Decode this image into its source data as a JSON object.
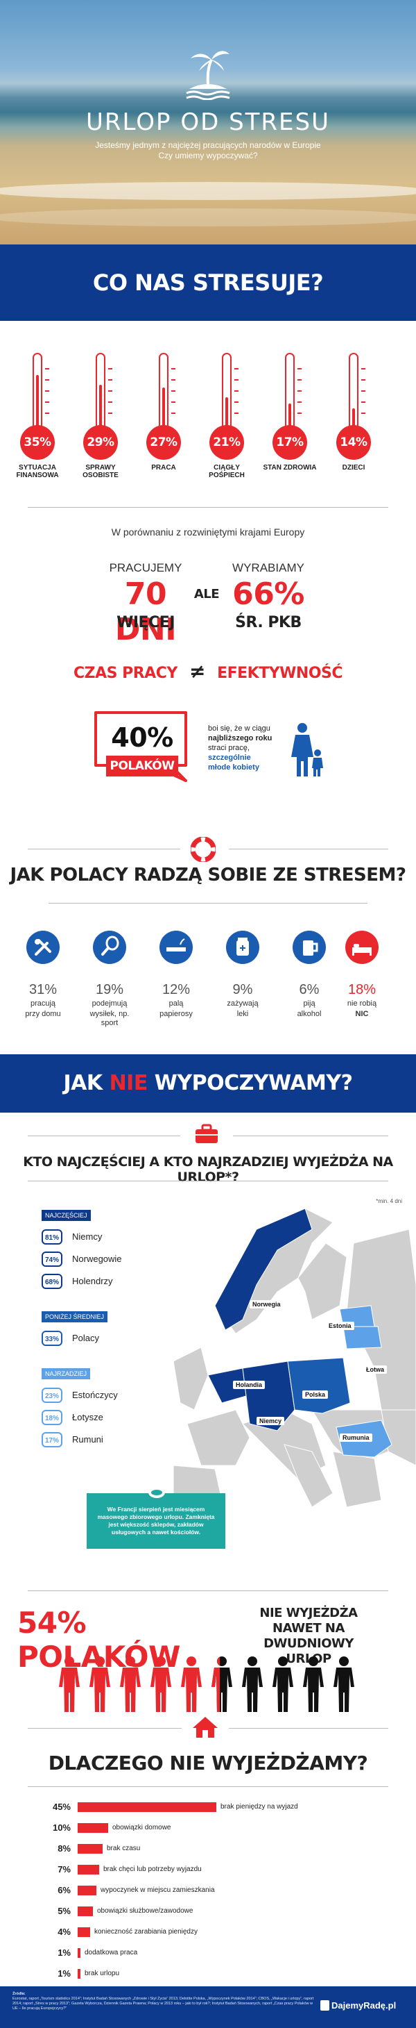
{
  "hero": {
    "title": "URLOP OD STRESU",
    "subtitle_line1": "Jesteśmy jednym z najciężej pracujących narodów w Europie",
    "subtitle_line2": "Czy umiemy wypoczywać?"
  },
  "stress": {
    "title": "CO NAS STRESUJE?",
    "items": [
      {
        "value": "35%",
        "label": "SYTUACJA FINANSOWA"
      },
      {
        "value": "29%",
        "label": "SPRAWY OSOBISTE"
      },
      {
        "value": "27%",
        "label": "PRACA"
      },
      {
        "value": "21%",
        "label": "CIĄGŁY POŚPIECH"
      },
      {
        "value": "17%",
        "label": "STAN ZDROWIA"
      },
      {
        "value": "14%",
        "label": "DZIECI"
      }
    ]
  },
  "comparison": {
    "subtitle": "W porównaniu z rozwiniętymi krajami Europy",
    "work_label": "PRACUJEMY",
    "work_value": "70 DNI",
    "work_sub": "WIĘCEJ",
    "connector": "ALE",
    "prod_label": "WYRABIAMY",
    "prod_value": "66%",
    "prod_sub": "ŚR. PKB",
    "equation_left": "CZAS PRACY",
    "equation_sign": "≠",
    "equation_right": "EFEKTYWNOŚĆ"
  },
  "fear": {
    "value": "40%",
    "label": "POLAKÓW",
    "text1": "boi się, że w ciągu",
    "text2": "najbliższego roku",
    "text3": "straci pracę,",
    "text4": "szczególnie",
    "text5": "młode kobiety"
  },
  "coping": {
    "title": "JAK POLACY RADZĄ SOBIE ZE STRESEM?",
    "items": [
      {
        "icon": "tools-icon",
        "value": "31%",
        "line1": "pracują",
        "line2": "przy domu",
        "color": "#1a5cb0"
      },
      {
        "icon": "racket-icon",
        "value": "19%",
        "line1": "podejmują",
        "line2": "wysiłek, np. sport",
        "color": "#1a5cb0"
      },
      {
        "icon": "cigarette-icon",
        "value": "12%",
        "line1": "palą",
        "line2": "papierosy",
        "color": "#1a5cb0"
      },
      {
        "icon": "pill-icon",
        "value": "9%",
        "line1": "zażywają",
        "line2": "leki",
        "color": "#1a5cb0"
      },
      {
        "icon": "beer-icon",
        "value": "6%",
        "line1": "piją",
        "line2": "alkohol",
        "color": "#1a5cb0"
      },
      {
        "icon": "bed-icon",
        "value": "18%",
        "line1": "nie robią",
        "line2": "NIC",
        "color": "#e8282d"
      }
    ]
  },
  "rest": {
    "title_pre": "JAK",
    "title_red": "NIE",
    "title_post": "WYPOCZYWAMY?"
  },
  "travel": {
    "title": "KTO NAJCZĘŚCIEJ A KTO NAJRZADZIEJ WYJEŻDŻA NA URLOP*?",
    "footnote": "*min. 4 dni",
    "groups": [
      {
        "header": "NAJCZĘŚCIEJ",
        "color": "#0d3a8c",
        "rows": [
          {
            "value": "81%",
            "name": "Niemcy"
          },
          {
            "value": "74%",
            "name": "Norwegowie"
          },
          {
            "value": "68%",
            "name": "Holendrzy"
          }
        ]
      },
      {
        "header": "PONIŻEJ ŚREDNIEJ",
        "color": "#1a5cb0",
        "rows": [
          {
            "value": "33%",
            "name": "Polacy"
          }
        ]
      },
      {
        "header": "NAJRZADZIEJ",
        "color": "#5da2e8",
        "rows": [
          {
            "value": "23%",
            "name": "Estończycy"
          },
          {
            "value": "18%",
            "name": "Łotysze"
          },
          {
            "value": "17%",
            "name": "Rumuni"
          }
        ]
      }
    ],
    "map_labels": [
      "Norwegia",
      "Estonia",
      "Łotwa",
      "Holandia",
      "Polska",
      "Niemcy",
      "Rumunia"
    ],
    "note": "We Francji sierpień jest miesiącem masowego zbiorowego urlopu. Zamknięta jest większość sklepów, zakładów usługowych a nawet kościołów."
  },
  "no_vacation": {
    "value": "54% POLAKÓW",
    "text": "NIE WYJEŻDŻA NAWET NA DWUDNIOWY URLOP",
    "red_share": 0.54
  },
  "reasons": {
    "title": "DLACZEGO NIE WYJEŻDŻAMY?",
    "items": [
      {
        "value": "45%",
        "label": "brak pieniędzy na wyjazd",
        "share": 45
      },
      {
        "value": "10%",
        "label": "obowiązki domowe",
        "share": 10
      },
      {
        "value": "8%",
        "label": "brak czasu",
        "share": 8
      },
      {
        "value": "7%",
        "label": "brak chęci lub potrzeby wyjazdu",
        "share": 7
      },
      {
        "value": "6%",
        "label": "wypoczynek w miejscu zamieszkania",
        "share": 6
      },
      {
        "value": "5%",
        "label": "obowiązki służbowe/zawodowe",
        "share": 5
      },
      {
        "value": "4%",
        "label": "konieczność zarabiania pieniędzy",
        "share": 4
      },
      {
        "value": "1%",
        "label": "dodatkowa praca",
        "share": 1
      },
      {
        "value": "1%",
        "label": "brak urlopu",
        "share": 1
      }
    ]
  },
  "footer": {
    "sources_label": "Źródła:",
    "sources_text": "Eurostat, raport „Tourism statistics 2014”; Instytut Badań Stosowanych „Zdrowie i Styl Życia” 2013; Deloitte Polska, „Wypoczynek Polaków 2014”; CBOS, „Wakacje i urlopy”, raport 2014; raport „Stres w pracy 2013”; Gazeta Wyborcza, Dziennik Gazeta Prawna; Polacy w 2013 roku – jaki to był rok?; Instytut Badań Stosowanych, raport „Czas pracy Polaków w UE – Ile pracują Europejczycy?”",
    "brand": "DajemyRadę.pl"
  }
}
